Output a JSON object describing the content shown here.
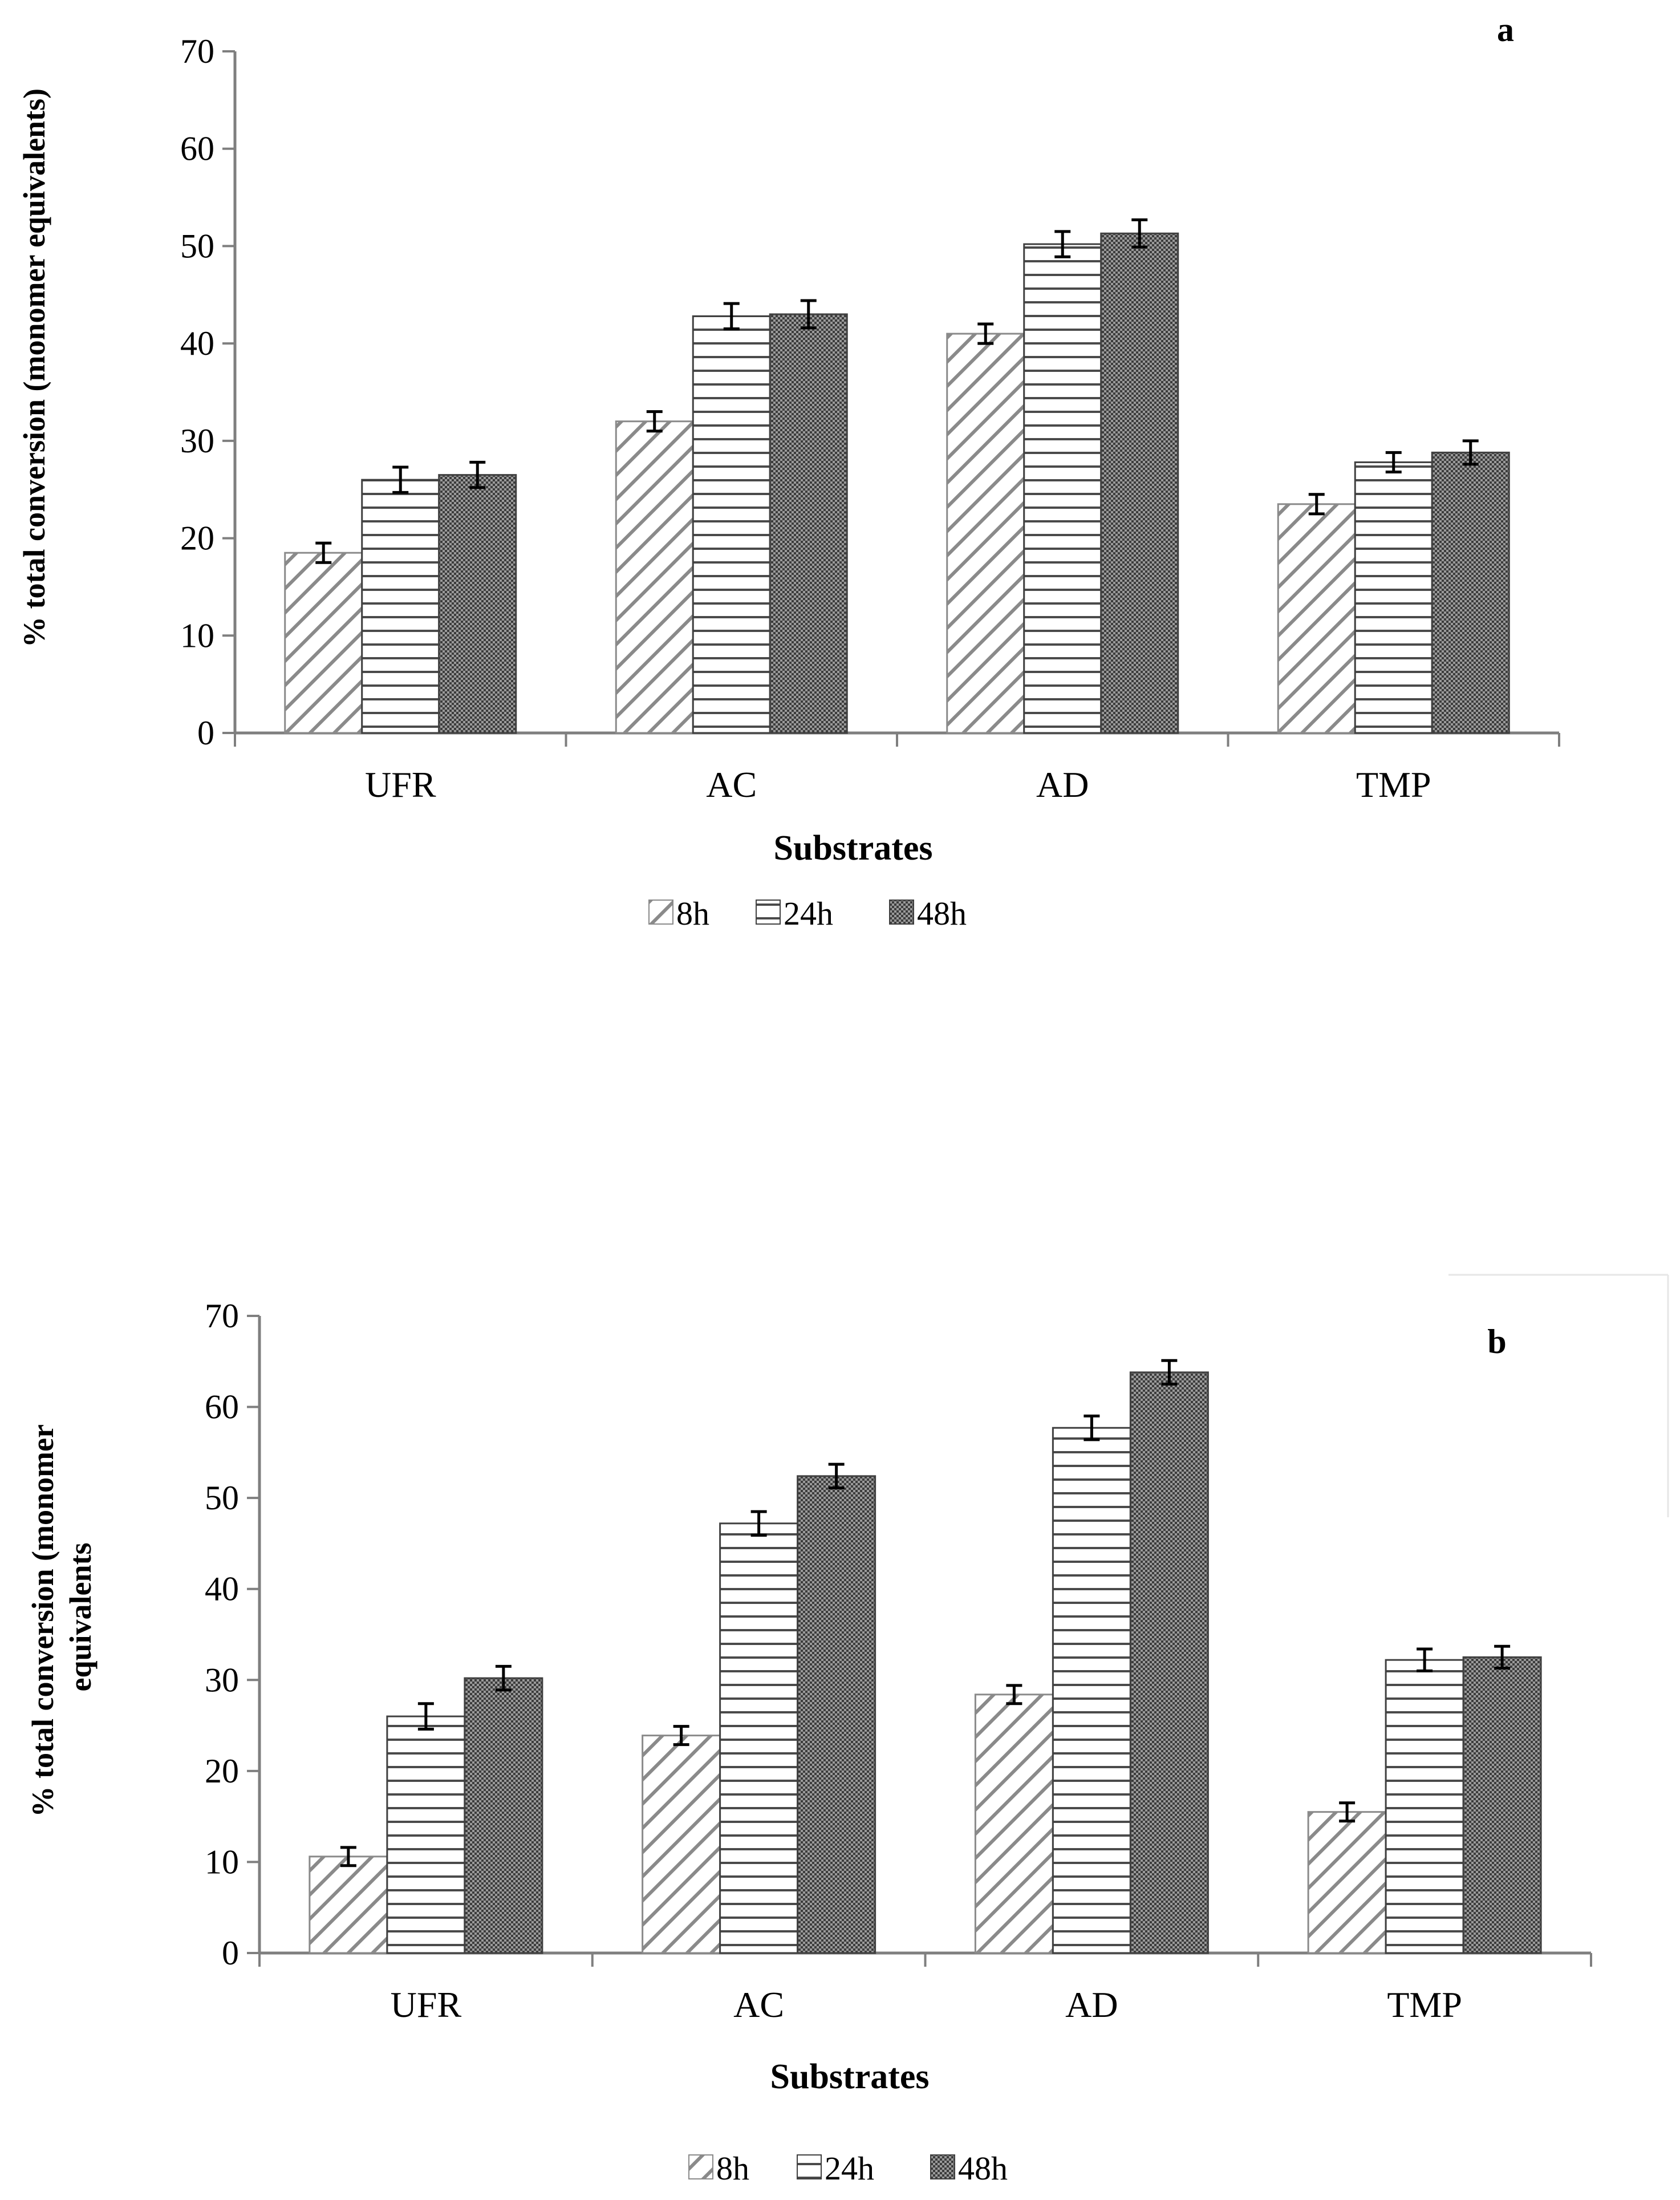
{
  "chart_data": [
    {
      "type": "bar",
      "panel_label": "a",
      "categories": [
        "UFR",
        "AC",
        "AD",
        "TMP"
      ],
      "series": [
        {
          "name": "8h",
          "values": [
            18.5,
            32.0,
            41.0,
            23.5
          ],
          "errors": [
            1.0,
            1.0,
            1.0,
            1.0
          ]
        },
        {
          "name": "24h",
          "values": [
            26.0,
            42.8,
            50.2,
            27.8
          ],
          "errors": [
            1.3,
            1.3,
            1.3,
            1.0
          ]
        },
        {
          "name": "48h",
          "values": [
            26.5,
            43.0,
            51.3,
            28.8
          ],
          "errors": [
            1.3,
            1.4,
            1.4,
            1.2
          ]
        }
      ],
      "xlabel": "Substrates",
      "ylabel": "% total conversion (monomer equivalents)",
      "ylim": [
        0,
        70
      ],
      "yticks": [
        0,
        10,
        20,
        30,
        40,
        50,
        60,
        70
      ],
      "legend": "bottom-center"
    },
    {
      "type": "bar",
      "panel_label": "b",
      "categories": [
        "UFR",
        "AC",
        "AD",
        "TMP"
      ],
      "series": [
        {
          "name": "8h",
          "values": [
            10.6,
            23.9,
            28.4,
            15.5
          ],
          "errors": [
            1.0,
            1.0,
            1.0,
            1.0
          ]
        },
        {
          "name": "24h",
          "values": [
            26.0,
            47.2,
            57.7,
            32.2
          ],
          "errors": [
            1.4,
            1.3,
            1.3,
            1.2
          ]
        },
        {
          "name": "48h",
          "values": [
            30.2,
            52.4,
            63.8,
            32.5
          ],
          "errors": [
            1.3,
            1.3,
            1.3,
            1.2
          ]
        }
      ],
      "xlabel": "Substrates",
      "ylabel": "% total conversion (monomer equivalents",
      "ylim": [
        0,
        70
      ],
      "yticks": [
        0,
        10,
        20,
        30,
        40,
        50,
        60,
        70
      ],
      "legend": "bottom-center"
    }
  ],
  "colors": {
    "axis": "#7f7f7f",
    "bar_stroke": "#404040",
    "hatch_line": "#808080",
    "crosshatch": "#606060",
    "text": "#000000"
  }
}
